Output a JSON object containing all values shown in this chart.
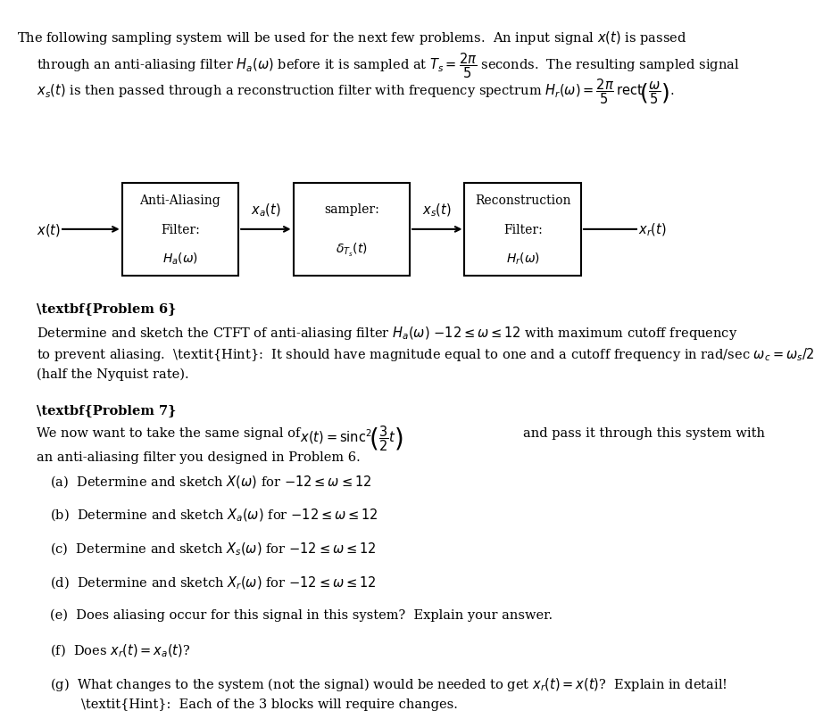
{
  "bg_color": "#ffffff",
  "text_color": "#000000",
  "fig_width": 9.45,
  "fig_height": 7.77,
  "intro_line1": "The following sampling system will be used for the next few problems.  An input signal $x(t)$ is passed",
  "intro_line2": "through an anti-aliasing filter $H_a(\\omega)$ before it is sampled at $T_s = \\dfrac{2\\pi}{5}$ seconds.  The resulting sampled signal",
  "intro_line3": "$x_s(t)$ is then passed through a reconstruction filter with frequency spectrum $H_r(\\omega) = \\dfrac{2\\pi}{5}\\,\\mathrm{rect}\\!\\left(\\dfrac{\\omega}{5}\\right).$",
  "block1_lines": [
    "Anti-Aliasing",
    "Filter:",
    "$H_a(\\omega)$"
  ],
  "block2_lines": [
    "sampler:",
    "$\\delta_{T_s}(t)$"
  ],
  "block3_lines": [
    "Reconstruction",
    "Filter:",
    "$H_r(\\omega)$"
  ],
  "label_xt": "$x(t)$",
  "label_xat": "$x_a(t)$",
  "label_xst": "$x_s(t)$",
  "label_xrt": "$x_r(t)$",
  "prob6_title": "\\textbf{Problem 6}",
  "prob6_body": "Determine and sketch the CTFT of anti-aliasing filter $H_a(\\omega)$ $-12 \\leq \\omega \\leq 12$ with maximum cutoff frequency\nto prevent aliasing.  \\textit{Hint}:  It should have magnitude equal to one and a cutoff frequency in rad/sec $\\omega_c = \\omega_s/2$\n(half the Nyquist rate).",
  "prob7_title": "\\textbf{Problem 7}",
  "prob7_intro1": "We now want to take the same signal of",
  "prob7_intro_eq": "$x(t) = \\mathrm{sinc}^2\\!\\left(\\dfrac{3}{2}t\\right)$",
  "prob7_intro2": "and pass it through this system with",
  "prob7_intro3": "an anti-aliasing filter you designed in Problem 6.",
  "parts": [
    "(a)  Determine and sketch $X(\\omega)$ for $-12 \\leq \\omega \\leq 12$",
    "(b)  Determine and sketch $X_a(\\omega)$ for $-12 \\leq \\omega \\leq 12$",
    "(c)  Determine and sketch $X_s(\\omega)$ for $-12 \\leq \\omega \\leq 12$",
    "(d)  Determine and sketch $X_r(\\omega)$ for $-12 \\leq \\omega \\leq 12$",
    "(e)  Does aliasing occur for this signal in this system?  Explain your answer.",
    "(f)  Does $x_r(t) = x_a(t)$?",
    "(g)  What changes to the system (not the signal) would be needed to get $x_r(t) = x(t)$?  Explain in detail!\n        \\textit{Hint}:  Each of the 3 blocks will require changes."
  ]
}
